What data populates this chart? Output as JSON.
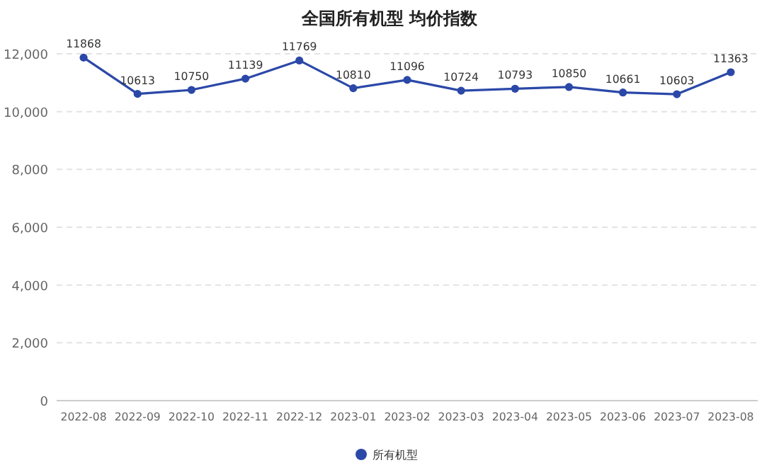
{
  "chart_data": {
    "type": "line",
    "title": "全国所有机型 均价指数",
    "categories": [
      "2022-08",
      "2022-09",
      "2022-10",
      "2022-11",
      "2022-12",
      "2023-01",
      "2023-02",
      "2023-03",
      "2023-04",
      "2023-05",
      "2023-06",
      "2023-07",
      "2023-08"
    ],
    "series": [
      {
        "name": "所有机型",
        "color": "#2b48a8",
        "values": [
          11868,
          10613,
          10750,
          11139,
          11769,
          10810,
          11096,
          10724,
          10793,
          10850,
          10661,
          10603,
          11363
        ]
      }
    ],
    "ylim": [
      0,
      12000
    ],
    "yticks": [
      0,
      {
        "value": 2000,
        "label": "2,000"
      },
      {
        "value": 4000,
        "label": "4,000"
      },
      {
        "value": 6000,
        "label": "6,000"
      },
      {
        "value": 8000,
        "label": "8,000"
      },
      {
        "value": 10000,
        "label": "10,000"
      },
      {
        "value": 12000,
        "label": "12,000"
      }
    ],
    "grid": "y",
    "legend": "bottom",
    "marker": "circle",
    "line_style": "solid",
    "data_labels": true
  }
}
